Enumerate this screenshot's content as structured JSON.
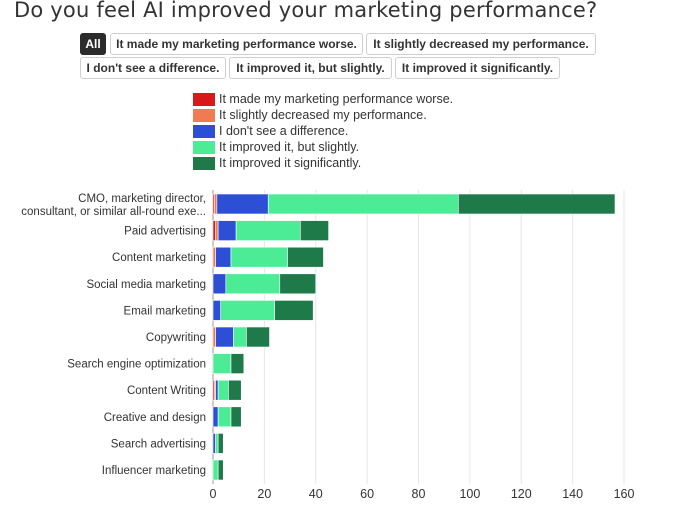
{
  "title": "Do you feel AI improved your marketing performance?",
  "filters": [
    {
      "label": "All",
      "active": true
    },
    {
      "label": "It made my marketing performance worse.",
      "active": false
    },
    {
      "label": "It slightly decreased my performance.",
      "active": false
    },
    {
      "label": "I don't see a difference.",
      "active": false
    },
    {
      "label": "It improved it, but slightly.",
      "active": false
    },
    {
      "label": "It improved it significantly.",
      "active": false
    }
  ],
  "colors": {
    "worse": "#d7191c",
    "slightly_decreased": "#f07b52",
    "no_difference": "#2d4fd6",
    "improved_slightly": "#4cec96",
    "improved_significantly": "#1f7a4a",
    "grid": "#e6e6e6",
    "axis": "#999999"
  },
  "chart_data": {
    "type": "bar",
    "orientation": "horizontal",
    "stacked": true,
    "title": "Do you feel AI improved your marketing performance?",
    "xlabel": "",
    "ylabel": "",
    "xlim": [
      0,
      160
    ],
    "xticks": [
      0,
      20,
      40,
      60,
      80,
      100,
      120,
      140,
      160
    ],
    "grid": true,
    "legend_position": "top",
    "categories": [
      [
        "CMO, marketing director,",
        "consultant, or similar all-round exe..."
      ],
      [
        "Paid advertising"
      ],
      [
        "Content marketing"
      ],
      [
        "Social media marketing"
      ],
      [
        "Email marketing"
      ],
      [
        "Copywriting"
      ],
      [
        "Search engine optimization"
      ],
      [
        "Content Writing"
      ],
      [
        "Creative and design"
      ],
      [
        "Search advertising"
      ],
      [
        "Influencer marketing"
      ]
    ],
    "series": [
      {
        "name": "It made my marketing performance worse.",
        "color_key": "worse",
        "values": [
          0.5,
          1,
          0,
          0,
          0,
          0,
          0,
          0.5,
          0,
          0,
          0
        ]
      },
      {
        "name": "It slightly decreased my performance.",
        "color_key": "slightly_decreased",
        "values": [
          1,
          1,
          1,
          0,
          0,
          1,
          0,
          0.5,
          0,
          0,
          0
        ]
      },
      {
        "name": "I don't see a difference.",
        "color_key": "no_difference",
        "values": [
          20,
          7,
          6,
          5,
          3,
          7,
          0,
          1,
          2,
          1,
          0
        ]
      },
      {
        "name": "It improved it, but slightly.",
        "color_key": "improved_slightly",
        "values": [
          74,
          25,
          22,
          21,
          21,
          5,
          7,
          4,
          5,
          1,
          2
        ]
      },
      {
        "name": "It improved it significantly.",
        "color_key": "improved_significantly",
        "values": [
          61,
          11,
          14,
          14,
          15,
          9,
          5,
          5,
          4,
          2,
          2
        ]
      }
    ]
  }
}
